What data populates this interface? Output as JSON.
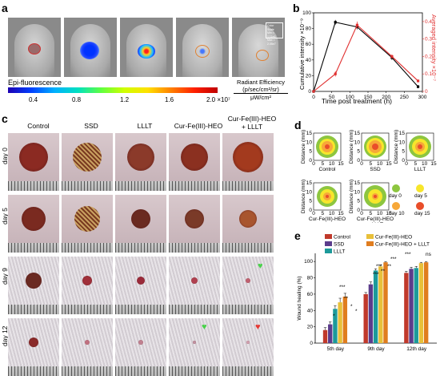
{
  "panel_a": {
    "label": "a",
    "times": [
      "hour 0",
      "hour 60",
      "day 5",
      "day 9",
      "day 12"
    ],
    "colorscale_title": "Epi-fluorescence",
    "colorscale_ticks": [
      "0.4",
      "0.8",
      "1.2",
      "1.6",
      "2.0 ×10⁷"
    ],
    "units_title": "Radiant Efficiency",
    "units_num": "(p/sec/cm²/sr)",
    "units_den": "μW/cm²",
    "colorscale_box": "Color Scale\nMin = 1.11e6\nMax = 2.05e7",
    "colorscale_box_lines": [
      "Color Scale",
      "Min = 1.11e6",
      "Max = 2.05e7"
    ]
  },
  "panel_b": {
    "label": "b"
  },
  "panel_c": {
    "label": "c",
    "columns": [
      "Control",
      "SSD",
      "LLLT",
      "Cur-Fe(III)-HEO",
      "Cur-Fe(III)-HEO\n+ LLLT"
    ],
    "rows": [
      "day 0",
      "day 5",
      "day 9",
      "day 12"
    ]
  },
  "panel_d": {
    "label": "d",
    "ylabel": "Distance (mm)",
    "ticks": [
      "0",
      "5",
      "10",
      "15"
    ],
    "plots": [
      "Control",
      "SSD",
      "LLLT",
      "Cur-Fe(III)-HEO",
      "Cur-Fe(III)-HEO\n+ LLLT"
    ],
    "legend": [
      {
        "label": "day 0",
        "color": "#8dc63f"
      },
      {
        "label": "day 5",
        "color": "#f7e62b"
      },
      {
        "label": "day 10",
        "color": "#f7a839"
      },
      {
        "label": "day 15",
        "color": "#e94e2a"
      }
    ]
  },
  "panel_e": {
    "label": "e"
  },
  "chart_data": [
    {
      "type": "line",
      "xlabel": "Time post treatment (h)",
      "ylabel_left": "Cumulative intensity ×10⁻⁹",
      "ylabel_right": "Averaged intensity ×10⁻⁷",
      "xticks": [
        0,
        50,
        100,
        150,
        200,
        250,
        300
      ],
      "yticks_left": [
        0,
        20,
        40,
        60,
        80,
        100
      ],
      "yticks_right": [
        0,
        0.1,
        0.2,
        0.3,
        0.4
      ],
      "xlim": [
        0,
        300
      ],
      "ylim_left": [
        0,
        100
      ],
      "ylim_right": [
        0,
        0.45
      ],
      "series": [
        {
          "color": "#000000",
          "axis": "left",
          "x": [
            0,
            60,
            120,
            216,
            288
          ],
          "y": [
            0,
            88,
            82,
            43,
            6
          ],
          "err": [
            0,
            3,
            3,
            3,
            2
          ]
        },
        {
          "color": "#e03030",
          "axis": "right",
          "x": [
            0,
            60,
            120,
            216,
            288
          ],
          "y": [
            0,
            0.1,
            0.38,
            0.2,
            0.06
          ],
          "err": [
            0,
            0.015,
            0.02,
            0.012,
            0.008
          ]
        }
      ]
    },
    {
      "type": "bar",
      "ylabel": "Wound healing (%)",
      "ylim": [
        0,
        110
      ],
      "yticks": [
        0,
        20,
        40,
        60,
        80,
        100
      ],
      "categories": [
        "5th day",
        "9th day",
        "12th day"
      ],
      "series": [
        {
          "name": "Control",
          "color": "#c0392b",
          "values": [
            16,
            60,
            86
          ],
          "err": [
            3,
            2,
            2
          ]
        },
        {
          "name": "SSD",
          "color": "#5b3c8c",
          "values": [
            23,
            72,
            91
          ],
          "err": [
            3,
            3,
            2
          ]
        },
        {
          "name": "LLLT",
          "color": "#1c9a9a",
          "values": [
            42,
            89,
            92
          ],
          "err": [
            4,
            2,
            2
          ]
        },
        {
          "name": "Cur-Fe(III)-HEO",
          "color": "#e8c03a",
          "values": [
            50,
            94,
            98
          ],
          "err": [
            5,
            2,
            1
          ]
        },
        {
          "name": "Cur-Fe(III)-HEO + LLLT",
          "color": "#e07d1f",
          "values": [
            57,
            99,
            99
          ],
          "err": [
            4,
            1,
            1
          ]
        }
      ],
      "significance": [
        "***",
        "**",
        "*",
        "*",
        "*",
        "***",
        "***",
        "**",
        "**",
        "***",
        "***",
        "ns"
      ]
    }
  ]
}
